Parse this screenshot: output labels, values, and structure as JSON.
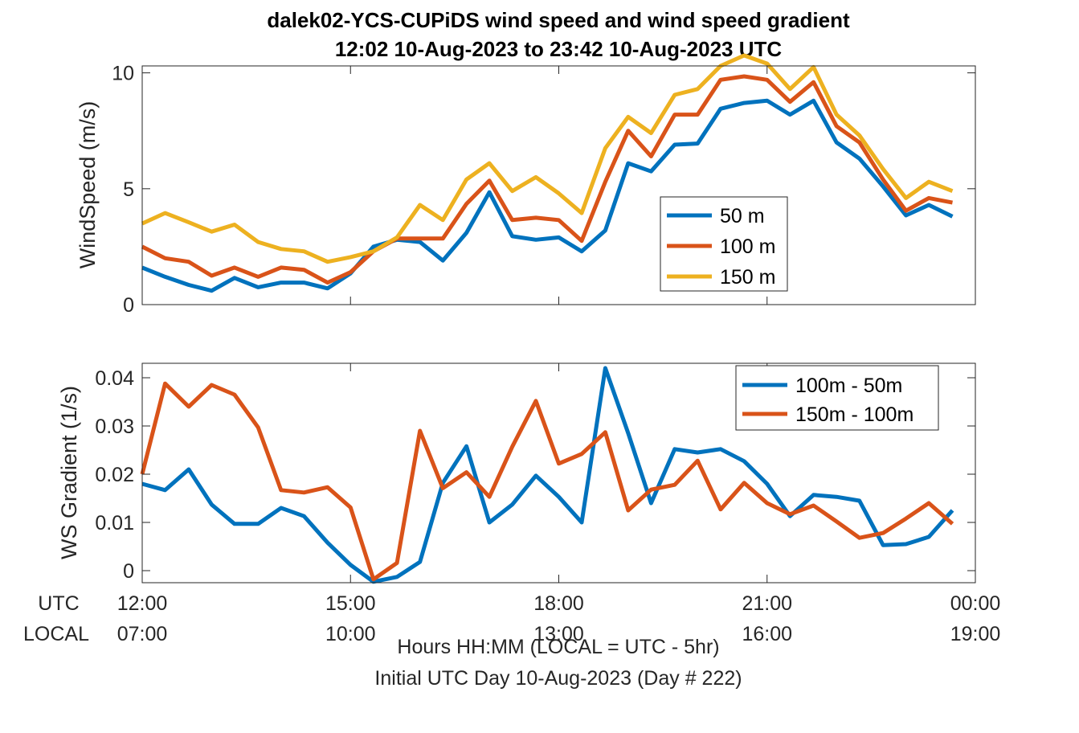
{
  "title_line1": "dalek02-YCS-CUPiDS  wind speed and wind speed gradient",
  "title_line2": "12:02 10-Aug-2023 to 23:42 10-Aug-2023  UTC",
  "row_labels": {
    "utc": "UTC",
    "local": "LOCAL"
  },
  "xlabel_line1": "Hours HH:MM  (LOCAL = UTC - 5hr)",
  "xlabel_line2": "Initial UTC Day 10-Aug-2023 (Day # 222)",
  "x_ticks": [
    {
      "x": 12,
      "utc": "12:00",
      "local": "07:00"
    },
    {
      "x": 15,
      "utc": "15:00",
      "local": "10:00"
    },
    {
      "x": 18,
      "utc": "18:00",
      "local": "13:00"
    },
    {
      "x": 21,
      "utc": "21:00",
      "local": "16:00"
    },
    {
      "x": 24,
      "utc": "00:00",
      "local": "19:00"
    }
  ],
  "colors": {
    "blue": "#0072BD",
    "orange": "#D95319",
    "yellow": "#EDB120"
  },
  "chart_data": [
    {
      "type": "line",
      "ylabel": "WindSpeed (m/s)",
      "xlim": [
        12,
        24
      ],
      "ylim": [
        0,
        10.3
      ],
      "yticks": [
        0,
        5,
        10
      ],
      "ytick_labels": [
        "0",
        "5",
        "10"
      ],
      "legend_position": "inside right",
      "x": [
        12.0,
        12.33,
        12.67,
        13.0,
        13.33,
        13.67,
        14.0,
        14.33,
        14.67,
        15.0,
        15.33,
        15.67,
        16.0,
        16.33,
        16.67,
        17.0,
        17.33,
        17.67,
        18.0,
        18.33,
        18.67,
        19.0,
        19.33,
        19.67,
        20.0,
        20.33,
        20.67,
        21.0,
        21.33,
        21.67,
        22.0,
        22.33,
        22.67,
        23.0,
        23.33,
        23.67
      ],
      "series": [
        {
          "name": "50 m",
          "color": "#0072BD",
          "values": [
            1.6,
            1.2,
            0.85,
            0.6,
            1.15,
            0.75,
            0.95,
            0.95,
            0.7,
            1.35,
            2.5,
            2.8,
            2.7,
            1.9,
            3.1,
            4.85,
            2.95,
            2.8,
            2.9,
            2.3,
            3.2,
            6.1,
            5.75,
            6.9,
            6.95,
            8.45,
            8.7,
            8.8,
            8.2,
            8.8,
            7.0,
            6.3,
            5.1,
            3.85,
            4.3,
            3.8
          ]
        },
        {
          "name": "100 m",
          "color": "#D95319",
          "values": [
            2.5,
            2.0,
            1.85,
            1.25,
            1.6,
            1.2,
            1.6,
            1.5,
            0.95,
            1.4,
            2.3,
            2.85,
            2.85,
            2.85,
            4.35,
            5.35,
            3.65,
            3.75,
            3.65,
            2.75,
            5.3,
            7.5,
            6.4,
            8.2,
            8.2,
            9.7,
            9.85,
            9.7,
            8.75,
            9.6,
            7.7,
            7.0,
            5.4,
            4.05,
            4.6,
            4.4
          ]
        },
        {
          "name": "150 m",
          "color": "#EDB120",
          "values": [
            3.5,
            3.95,
            3.55,
            3.15,
            3.45,
            2.7,
            2.4,
            2.3,
            1.85,
            2.05,
            2.3,
            2.9,
            4.3,
            3.65,
            5.4,
            6.1,
            4.9,
            5.5,
            4.8,
            3.95,
            6.75,
            8.1,
            7.4,
            9.05,
            9.3,
            10.3,
            10.75,
            10.4,
            9.3,
            10.25,
            8.2,
            7.3,
            5.85,
            4.6,
            5.3,
            4.9
          ]
        }
      ]
    },
    {
      "type": "line",
      "ylabel": "WS Gradient (1/s)",
      "xlim": [
        12,
        24
      ],
      "ylim": [
        -0.0025,
        0.043
      ],
      "yticks": [
        0,
        0.01,
        0.02,
        0.03,
        0.04
      ],
      "ytick_labels": [
        "0",
        "0.01",
        "0.02",
        "0.03",
        "0.04"
      ],
      "legend_position": "top-right",
      "x": [
        12.0,
        12.33,
        12.67,
        13.0,
        13.33,
        13.67,
        14.0,
        14.33,
        14.67,
        15.0,
        15.33,
        15.67,
        16.0,
        16.33,
        16.67,
        17.0,
        17.33,
        17.67,
        18.0,
        18.33,
        18.67,
        19.0,
        19.33,
        19.67,
        20.0,
        20.33,
        20.67,
        21.0,
        21.33,
        21.67,
        22.0,
        22.33,
        22.67,
        23.0,
        23.33,
        23.67
      ],
      "series": [
        {
          "name": "100m - 50m",
          "color": "#0072BD",
          "values": [
            0.018,
            0.0167,
            0.021,
            0.0137,
            0.0097,
            0.0097,
            0.013,
            0.0113,
            0.0058,
            0.0012,
            -0.0023,
            -0.0013,
            0.0018,
            0.0182,
            0.0258,
            0.01,
            0.0137,
            0.0197,
            0.0153,
            0.01,
            0.042,
            0.0285,
            0.014,
            0.0252,
            0.0245,
            0.0252,
            0.0227,
            0.018,
            0.0113,
            0.0157,
            0.0153,
            0.0145,
            0.0053,
            0.0055,
            0.007,
            0.0125
          ]
        },
        {
          "name": "150m - 100m",
          "color": "#D95319",
          "values": [
            0.02,
            0.0388,
            0.034,
            0.0385,
            0.0365,
            0.0297,
            0.0167,
            0.0162,
            0.0173,
            0.0131,
            -0.0018,
            0.0016,
            0.029,
            0.0171,
            0.0204,
            0.0153,
            0.0257,
            0.0352,
            0.0222,
            0.0242,
            0.0287,
            0.0125,
            0.0168,
            0.0178,
            0.0228,
            0.0127,
            0.0182,
            0.014,
            0.0117,
            0.0135,
            0.0102,
            0.0068,
            0.0078,
            0.0108,
            0.014,
            0.0097
          ]
        }
      ]
    }
  ]
}
